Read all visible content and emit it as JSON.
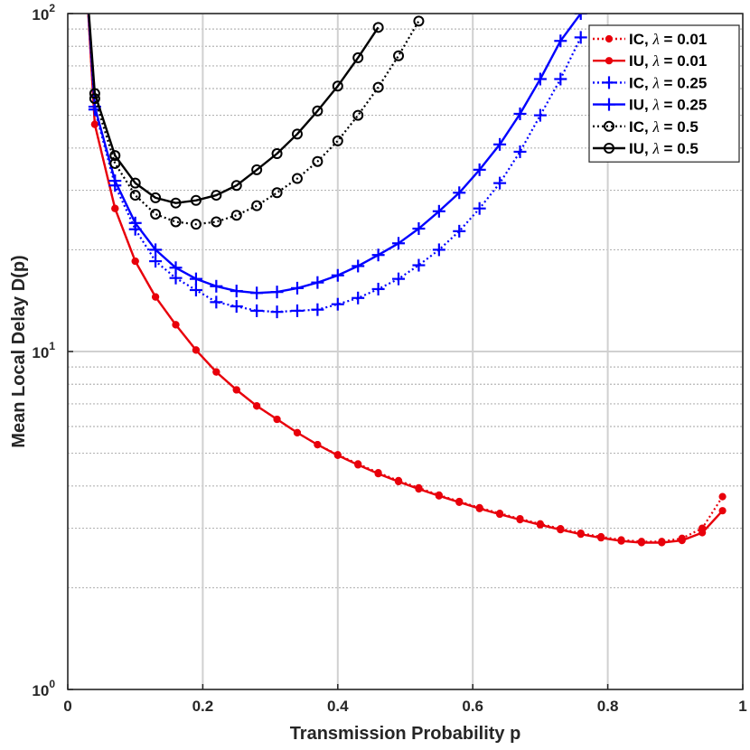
{
  "chart_data": {
    "type": "line",
    "title": "",
    "xlabel": "Transmission Probability p",
    "ylabel": "Mean Local Delay D(p)",
    "xlim": [
      0,
      1
    ],
    "ylim": [
      1,
      100
    ],
    "yscale": "log",
    "grid": true,
    "legend_position": "top-right",
    "x_ticks": [
      {
        "value": 0,
        "label": "0"
      },
      {
        "value": 0.2,
        "label": "0.2"
      },
      {
        "value": 0.4,
        "label": "0.4"
      },
      {
        "value": 0.6,
        "label": "0.6"
      },
      {
        "value": 0.8,
        "label": "0.8"
      },
      {
        "value": 1,
        "label": "1"
      }
    ],
    "y_ticks": [
      {
        "value": 1,
        "base": "10",
        "exp": "0"
      },
      {
        "value": 10,
        "base": "10",
        "exp": "1"
      },
      {
        "value": 100,
        "base": "10",
        "exp": "2"
      }
    ],
    "series": [
      {
        "name": "IC, λ = 0.01",
        "label_prefix": "IC, ",
        "label_symbol": "λ",
        "label_suffix": " = 0.01",
        "color": "#e8000b",
        "dash": "dotted",
        "marker": "dot",
        "x": [
          0.04,
          0.07,
          0.1,
          0.13,
          0.16,
          0.19,
          0.22,
          0.25,
          0.28,
          0.31,
          0.34,
          0.37,
          0.4,
          0.43,
          0.46,
          0.49,
          0.52,
          0.55,
          0.58,
          0.61,
          0.64,
          0.67,
          0.7,
          0.73,
          0.76,
          0.79,
          0.82,
          0.85,
          0.88,
          0.91,
          0.94,
          0.97
        ],
        "y": [
          47,
          26.5,
          18.5,
          14.5,
          12,
          10.1,
          8.7,
          7.7,
          6.9,
          6.3,
          5.75,
          5.3,
          4.95,
          4.65,
          4.38,
          4.15,
          3.95,
          3.76,
          3.6,
          3.45,
          3.32,
          3.2,
          3.09,
          2.99,
          2.9,
          2.83,
          2.77,
          2.74,
          2.74,
          2.8,
          3.0,
          3.72
        ]
      },
      {
        "name": "IU, λ = 0.01",
        "label_prefix": "IU, ",
        "label_symbol": "λ",
        "label_suffix": " = 0.01",
        "color": "#e8000b",
        "dash": "solid",
        "marker": "dot",
        "x": [
          0.04,
          0.07,
          0.1,
          0.13,
          0.16,
          0.19,
          0.22,
          0.25,
          0.28,
          0.31,
          0.34,
          0.37,
          0.4,
          0.43,
          0.46,
          0.49,
          0.52,
          0.55,
          0.58,
          0.61,
          0.64,
          0.67,
          0.7,
          0.73,
          0.76,
          0.79,
          0.82,
          0.85,
          0.88,
          0.91,
          0.94,
          0.97
        ],
        "y": [
          47,
          26.5,
          18.5,
          14.5,
          12,
          10.1,
          8.7,
          7.7,
          6.9,
          6.3,
          5.75,
          5.3,
          4.93,
          4.62,
          4.35,
          4.12,
          3.92,
          3.74,
          3.58,
          3.43,
          3.3,
          3.18,
          3.07,
          2.97,
          2.88,
          2.81,
          2.75,
          2.72,
          2.72,
          2.76,
          2.91,
          3.38
        ]
      },
      {
        "name": "IC, λ = 0.25",
        "label_prefix": "IC, ",
        "label_symbol": "λ",
        "label_suffix": " = 0.25",
        "color": "#0000ff",
        "dash": "dotted",
        "marker": "plus",
        "x": [
          0.04,
          0.07,
          0.1,
          0.13,
          0.16,
          0.19,
          0.22,
          0.25,
          0.28,
          0.31,
          0.34,
          0.37,
          0.4,
          0.43,
          0.46,
          0.49,
          0.52,
          0.55,
          0.58,
          0.61,
          0.64,
          0.67,
          0.7,
          0.73,
          0.76
        ],
        "y": [
          52,
          31,
          23,
          18.5,
          16.5,
          15.2,
          14,
          13.6,
          13.2,
          13.1,
          13.2,
          13.3,
          13.8,
          14.4,
          15.3,
          16.4,
          18,
          20,
          22.7,
          26.5,
          31.5,
          39,
          50,
          64,
          85
        ]
      },
      {
        "name": "IU, λ = 0.25",
        "label_prefix": "IU, ",
        "label_symbol": "λ",
        "label_suffix": " = 0.25",
        "color": "#0000ff",
        "dash": "solid",
        "marker": "plus",
        "x": [
          0.04,
          0.07,
          0.1,
          0.13,
          0.16,
          0.19,
          0.22,
          0.25,
          0.28,
          0.31,
          0.34,
          0.37,
          0.4,
          0.43,
          0.46,
          0.49,
          0.52,
          0.55,
          0.58,
          0.61,
          0.64,
          0.67,
          0.7,
          0.73,
          0.76
        ],
        "y": [
          53,
          32,
          24,
          20,
          17.7,
          16.4,
          15.6,
          15.1,
          14.9,
          15,
          15.4,
          16,
          16.8,
          17.9,
          19.3,
          20.9,
          23.1,
          26,
          29.5,
          34.5,
          41,
          50.5,
          64,
          83,
          100
        ]
      },
      {
        "name": "IC, λ = 0.5",
        "label_prefix": "IC, ",
        "label_symbol": "λ",
        "label_suffix": " = 0.5",
        "color": "#000000",
        "dash": "dotted",
        "marker": "circle",
        "x": [
          0.04,
          0.07,
          0.1,
          0.13,
          0.16,
          0.19,
          0.22,
          0.25,
          0.28,
          0.31,
          0.34,
          0.37,
          0.4,
          0.43,
          0.46,
          0.49,
          0.52
        ],
        "y": [
          56,
          36,
          29,
          25.5,
          24.2,
          23.8,
          24.2,
          25.3,
          27,
          29.5,
          32.5,
          36.5,
          42,
          50,
          60.5,
          75,
          95
        ]
      },
      {
        "name": "IU, λ = 0.5",
        "label_prefix": "IU, ",
        "label_symbol": "λ",
        "label_suffix": " = 0.5",
        "color": "#000000",
        "dash": "solid",
        "marker": "circle",
        "x": [
          0.04,
          0.07,
          0.1,
          0.13,
          0.16,
          0.19,
          0.22,
          0.25,
          0.28,
          0.31,
          0.34,
          0.37,
          0.4,
          0.43,
          0.46
        ],
        "y": [
          58,
          38,
          31.5,
          28.5,
          27.5,
          28,
          29,
          31,
          34.5,
          38.5,
          44,
          51.5,
          61,
          74,
          91
        ]
      }
    ]
  }
}
